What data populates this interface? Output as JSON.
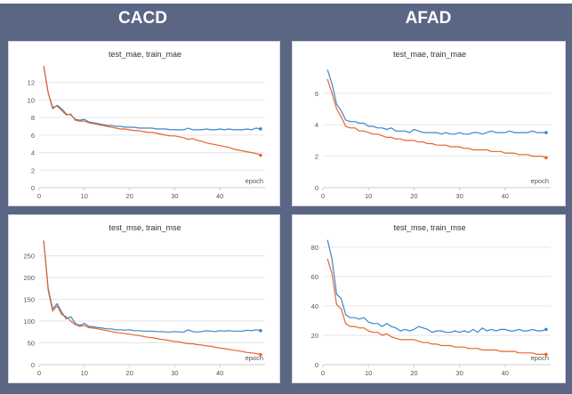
{
  "headers": [
    "CACD",
    "AFAD"
  ],
  "colors": {
    "test": "#3a86c8",
    "train": "#e8642c",
    "grid": "#e6e6e6",
    "axis": "#cccccc",
    "text": "#555555"
  },
  "chart_data": [
    {
      "type": "line",
      "title": "test_mae, train_mae",
      "xlabel": "epoch",
      "xlim": [
        0,
        50
      ],
      "ylim": [
        0,
        14
      ],
      "xticks": [
        0,
        10,
        20,
        30,
        40
      ],
      "yticks": [
        0,
        2,
        4,
        6,
        8,
        10,
        12
      ],
      "grid": true,
      "series": [
        {
          "name": "test_mae",
          "color": "#3a86c8",
          "x": [
            1,
            2,
            3,
            4,
            5,
            6,
            7,
            8,
            9,
            10,
            11,
            12,
            13,
            14,
            15,
            16,
            17,
            18,
            19,
            20,
            21,
            22,
            23,
            24,
            25,
            26,
            27,
            28,
            29,
            30,
            31,
            32,
            33,
            34,
            35,
            36,
            37,
            38,
            39,
            40,
            41,
            42,
            43,
            44,
            45,
            46,
            47,
            48,
            49
          ],
          "values": [
            13.9,
            10.8,
            9.0,
            9.4,
            9.0,
            8.4,
            8.3,
            7.8,
            7.7,
            7.8,
            7.5,
            7.4,
            7.3,
            7.2,
            7.1,
            7.1,
            7.0,
            7.0,
            6.9,
            6.9,
            6.9,
            6.8,
            6.8,
            6.8,
            6.8,
            6.7,
            6.7,
            6.7,
            6.6,
            6.6,
            6.6,
            6.6,
            6.8,
            6.6,
            6.6,
            6.6,
            6.7,
            6.6,
            6.6,
            6.7,
            6.6,
            6.7,
            6.6,
            6.6,
            6.6,
            6.7,
            6.6,
            6.8,
            6.7
          ]
        },
        {
          "name": "train_mae",
          "color": "#e8642c",
          "x": [
            1,
            2,
            3,
            4,
            5,
            6,
            7,
            8,
            9,
            10,
            11,
            12,
            13,
            14,
            15,
            16,
            17,
            18,
            19,
            20,
            21,
            22,
            23,
            24,
            25,
            26,
            27,
            28,
            29,
            30,
            31,
            32,
            33,
            34,
            35,
            36,
            37,
            38,
            39,
            40,
            41,
            42,
            43,
            44,
            45,
            46,
            47,
            48,
            49
          ],
          "values": [
            13.9,
            10.8,
            9.2,
            9.3,
            8.8,
            8.3,
            8.4,
            7.7,
            7.6,
            7.6,
            7.4,
            7.3,
            7.2,
            7.1,
            7.0,
            6.9,
            6.8,
            6.7,
            6.7,
            6.6,
            6.5,
            6.5,
            6.4,
            6.3,
            6.3,
            6.2,
            6.1,
            6.0,
            5.9,
            5.9,
            5.8,
            5.7,
            5.5,
            5.6,
            5.4,
            5.3,
            5.1,
            5.0,
            4.9,
            4.8,
            4.7,
            4.6,
            4.4,
            4.3,
            4.2,
            4.1,
            4.0,
            3.9,
            3.7
          ]
        }
      ]
    },
    {
      "type": "line",
      "title": "test_mae, train_mae",
      "xlabel": "epoch",
      "xlim": [
        0,
        50
      ],
      "ylim": [
        0,
        7.8
      ],
      "xticks": [
        0,
        10,
        20,
        30,
        40
      ],
      "yticks": [
        0,
        2,
        4,
        6
      ],
      "grid": true,
      "series": [
        {
          "name": "test_mae",
          "color": "#3a86c8",
          "x": [
            1,
            2,
            3,
            4,
            5,
            6,
            7,
            8,
            9,
            10,
            11,
            12,
            13,
            14,
            15,
            16,
            17,
            18,
            19,
            20,
            21,
            22,
            23,
            24,
            25,
            26,
            27,
            28,
            29,
            30,
            31,
            32,
            33,
            34,
            35,
            36,
            37,
            38,
            39,
            40,
            41,
            42,
            43,
            44,
            45,
            46,
            47,
            48,
            49
          ],
          "values": [
            7.5,
            6.6,
            5.3,
            4.9,
            4.3,
            4.2,
            4.2,
            4.1,
            4.1,
            3.9,
            3.9,
            3.8,
            3.8,
            3.7,
            3.8,
            3.6,
            3.6,
            3.6,
            3.5,
            3.7,
            3.6,
            3.5,
            3.5,
            3.5,
            3.5,
            3.4,
            3.5,
            3.4,
            3.4,
            3.5,
            3.4,
            3.4,
            3.5,
            3.5,
            3.4,
            3.5,
            3.6,
            3.5,
            3.5,
            3.5,
            3.6,
            3.5,
            3.5,
            3.5,
            3.5,
            3.6,
            3.5,
            3.5,
            3.5
          ]
        },
        {
          "name": "train_mae",
          "color": "#e8642c",
          "x": [
            1,
            2,
            3,
            4,
            5,
            6,
            7,
            8,
            9,
            10,
            11,
            12,
            13,
            14,
            15,
            16,
            17,
            18,
            19,
            20,
            21,
            22,
            23,
            24,
            25,
            26,
            27,
            28,
            29,
            30,
            31,
            32,
            33,
            34,
            35,
            36,
            37,
            38,
            39,
            40,
            41,
            42,
            43,
            44,
            45,
            46,
            47,
            48,
            49
          ],
          "values": [
            6.9,
            6.0,
            5.0,
            4.5,
            3.9,
            3.8,
            3.8,
            3.6,
            3.6,
            3.5,
            3.4,
            3.4,
            3.3,
            3.2,
            3.2,
            3.1,
            3.1,
            3.0,
            3.0,
            3.0,
            2.9,
            2.9,
            2.8,
            2.8,
            2.7,
            2.7,
            2.7,
            2.6,
            2.6,
            2.6,
            2.5,
            2.5,
            2.4,
            2.4,
            2.4,
            2.4,
            2.3,
            2.3,
            2.3,
            2.2,
            2.2,
            2.2,
            2.1,
            2.1,
            2.1,
            2.0,
            2.0,
            2.0,
            1.9
          ]
        }
      ]
    },
    {
      "type": "line",
      "title": "test_mse, train_mse",
      "xlabel": "epoch",
      "xlim": [
        0,
        50
      ],
      "ylim": [
        0,
        290
      ],
      "xticks": [
        0,
        10,
        20,
        30,
        40
      ],
      "yticks": [
        0,
        50,
        100,
        150,
        200,
        250
      ],
      "grid": true,
      "series": [
        {
          "name": "test_mse",
          "color": "#3a86c8",
          "x": [
            1,
            2,
            3,
            4,
            5,
            6,
            7,
            8,
            9,
            10,
            11,
            12,
            13,
            14,
            15,
            16,
            17,
            18,
            19,
            20,
            21,
            22,
            23,
            24,
            25,
            26,
            27,
            28,
            29,
            30,
            31,
            32,
            33,
            34,
            35,
            36,
            37,
            38,
            39,
            40,
            41,
            42,
            43,
            44,
            45,
            46,
            47,
            48,
            49
          ],
          "values": [
            285,
            175,
            128,
            140,
            120,
            105,
            110,
            95,
            90,
            95,
            88,
            87,
            85,
            84,
            82,
            82,
            80,
            80,
            79,
            80,
            78,
            78,
            77,
            77,
            77,
            76,
            76,
            75,
            75,
            76,
            75,
            75,
            80,
            76,
            75,
            76,
            78,
            77,
            76,
            78,
            77,
            78,
            77,
            77,
            77,
            79,
            78,
            80,
            78
          ]
        },
        {
          "name": "train_mse",
          "color": "#e8642c",
          "x": [
            1,
            2,
            3,
            4,
            5,
            6,
            7,
            8,
            9,
            10,
            11,
            12,
            13,
            14,
            15,
            16,
            17,
            18,
            19,
            20,
            21,
            22,
            23,
            24,
            25,
            26,
            27,
            28,
            29,
            30,
            31,
            32,
            33,
            34,
            35,
            36,
            37,
            38,
            39,
            40,
            41,
            42,
            43,
            44,
            45,
            46,
            47,
            48,
            49
          ],
          "values": [
            285,
            170,
            123,
            135,
            115,
            110,
            100,
            92,
            88,
            90,
            85,
            84,
            82,
            80,
            78,
            76,
            74,
            73,
            71,
            70,
            68,
            67,
            65,
            63,
            62,
            60,
            58,
            57,
            55,
            53,
            52,
            50,
            48,
            48,
            46,
            45,
            43,
            42,
            40,
            38,
            37,
            35,
            33,
            32,
            30,
            28,
            27,
            26,
            23
          ]
        }
      ]
    },
    {
      "type": "line",
      "title": "test_mse, train_mse",
      "xlabel": "epoch",
      "xlim": [
        0,
        50
      ],
      "ylim": [
        0,
        86
      ],
      "xticks": [
        0,
        10,
        20,
        30,
        40
      ],
      "yticks": [
        0,
        20,
        40,
        60,
        80
      ],
      "grid": true,
      "series": [
        {
          "name": "test_mse",
          "color": "#3a86c8",
          "x": [
            1,
            2,
            3,
            4,
            5,
            6,
            7,
            8,
            9,
            10,
            11,
            12,
            13,
            14,
            15,
            16,
            17,
            18,
            19,
            20,
            21,
            22,
            23,
            24,
            25,
            26,
            27,
            28,
            29,
            30,
            31,
            32,
            33,
            34,
            35,
            36,
            37,
            38,
            39,
            40,
            41,
            42,
            43,
            44,
            45,
            46,
            47,
            48,
            49
          ],
          "values": [
            85,
            72,
            48,
            45,
            34,
            32,
            32,
            31,
            32,
            29,
            28,
            28,
            26,
            28,
            26,
            25,
            23,
            24,
            23,
            24,
            26,
            25,
            24,
            22,
            23,
            23,
            22,
            22,
            23,
            22,
            23,
            22,
            24,
            22,
            25,
            23,
            24,
            23,
            24,
            24,
            23,
            23,
            24,
            23,
            23,
            24,
            23,
            23,
            24
          ]
        },
        {
          "name": "train_mse",
          "color": "#e8642c",
          "x": [
            1,
            2,
            3,
            4,
            5,
            6,
            7,
            8,
            9,
            10,
            11,
            12,
            13,
            14,
            15,
            16,
            17,
            18,
            19,
            20,
            21,
            22,
            23,
            24,
            25,
            26,
            27,
            28,
            29,
            30,
            31,
            32,
            33,
            34,
            35,
            36,
            37,
            38,
            39,
            40,
            41,
            42,
            43,
            44,
            45,
            46,
            47,
            48,
            49
          ],
          "values": [
            72,
            62,
            41,
            38,
            28,
            26,
            26,
            25,
            25,
            23,
            22,
            22,
            20,
            21,
            19,
            18,
            17,
            17,
            17,
            17,
            16,
            15,
            15,
            14,
            14,
            13,
            13,
            13,
            12,
            12,
            12,
            11,
            11,
            11,
            10,
            10,
            10,
            10,
            9,
            9,
            9,
            9,
            8,
            8,
            8,
            8,
            7,
            7,
            7
          ]
        }
      ]
    }
  ]
}
